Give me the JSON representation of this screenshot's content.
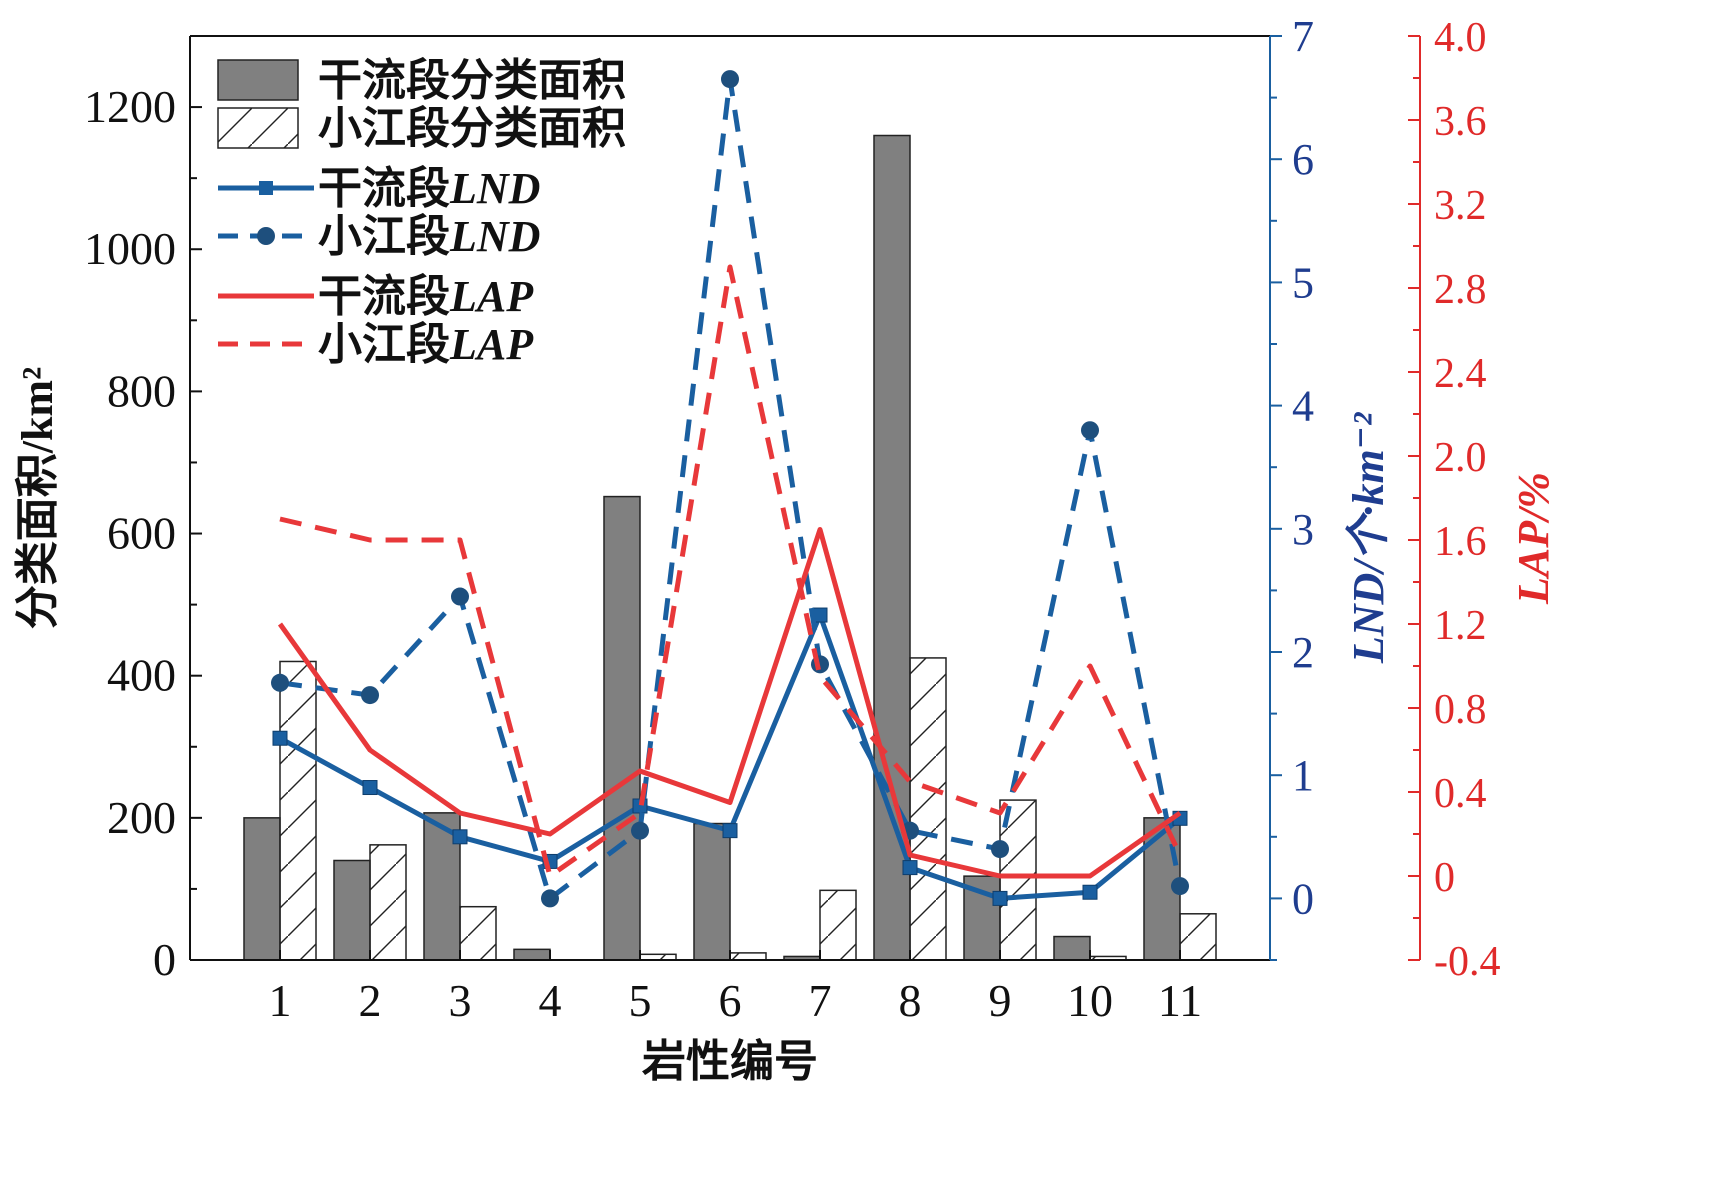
{
  "chart_data": {
    "type": "bar",
    "categories": [
      "1",
      "2",
      "3",
      "4",
      "5",
      "6",
      "7",
      "8",
      "9",
      "10",
      "11"
    ],
    "series": [
      {
        "name": "干流段分类面积",
        "kind": "bar",
        "axis": "area",
        "color": "#808080",
        "values": [
          200,
          140,
          207,
          15,
          652,
          192,
          5,
          1160,
          118,
          33,
          200
        ]
      },
      {
        "name": "小江段分类面积",
        "kind": "bar-hatched",
        "axis": "area",
        "color": "#ffffff",
        "values": [
          420,
          162,
          75,
          0,
          8,
          10,
          98,
          425,
          225,
          5,
          65
        ]
      },
      {
        "name": "干流段",
        "name_suffix": "LND",
        "kind": "line-square",
        "axis": "lnd",
        "color": "#1a5fa0",
        "values": [
          1.3,
          0.9,
          0.5,
          0.3,
          0.75,
          0.55,
          2.3,
          0.25,
          0.0,
          0.05,
          0.65
        ]
      },
      {
        "name": "小江段",
        "name_suffix": "LND",
        "kind": "dashed-circle",
        "axis": "lnd",
        "color": "#1a5fa0",
        "values": [
          1.75,
          1.65,
          2.45,
          0.0,
          0.55,
          6.65,
          1.9,
          0.55,
          0.4,
          3.8,
          0.1
        ]
      },
      {
        "name": "干流段",
        "name_suffix": "LAP",
        "kind": "line",
        "axis": "lap",
        "color": "#e8383a",
        "values": [
          1.2,
          0.6,
          0.3,
          0.2,
          0.5,
          0.35,
          1.65,
          0.1,
          0.0,
          0.0,
          0.3
        ]
      },
      {
        "name": "小江段",
        "name_suffix": "LAP",
        "kind": "dashed",
        "axis": "lap",
        "color": "#e8383a",
        "values": [
          1.7,
          1.6,
          1.6,
          0.0,
          0.3,
          2.9,
          0.95,
          0.45,
          0.3,
          1.0,
          0.1
        ]
      }
    ],
    "axes": {
      "x": {
        "label": "岩性编号"
      },
      "area": {
        "label": "分类面积/km²",
        "ylim": [
          0,
          1300
        ],
        "ticks": [
          "0",
          "200",
          "400",
          "600",
          "800",
          "1000",
          "1200"
        ]
      },
      "lnd": {
        "label": "LND/个·km⁻²",
        "ylim": [
          -0.5,
          7
        ],
        "ticks": [
          "0",
          "1",
          "2",
          "3",
          "4",
          "5",
          "6",
          "7"
        ]
      },
      "lap": {
        "label": "LAP/%",
        "ylim": [
          -0.4,
          4.0
        ],
        "ticks": [
          "-0.4",
          "0",
          "0.4",
          "0.8",
          "1.2",
          "1.6",
          "2.0",
          "2.4",
          "2.8",
          "3.2",
          "3.6",
          "4.0"
        ]
      }
    },
    "legend_position": "top-left",
    "grid": false,
    "colors": {
      "area_axis": "#111111",
      "lnd_axis": "#1a5fa0",
      "lnd_text": "#1f3d8f",
      "lap_axis": "#e02a2a"
    }
  }
}
